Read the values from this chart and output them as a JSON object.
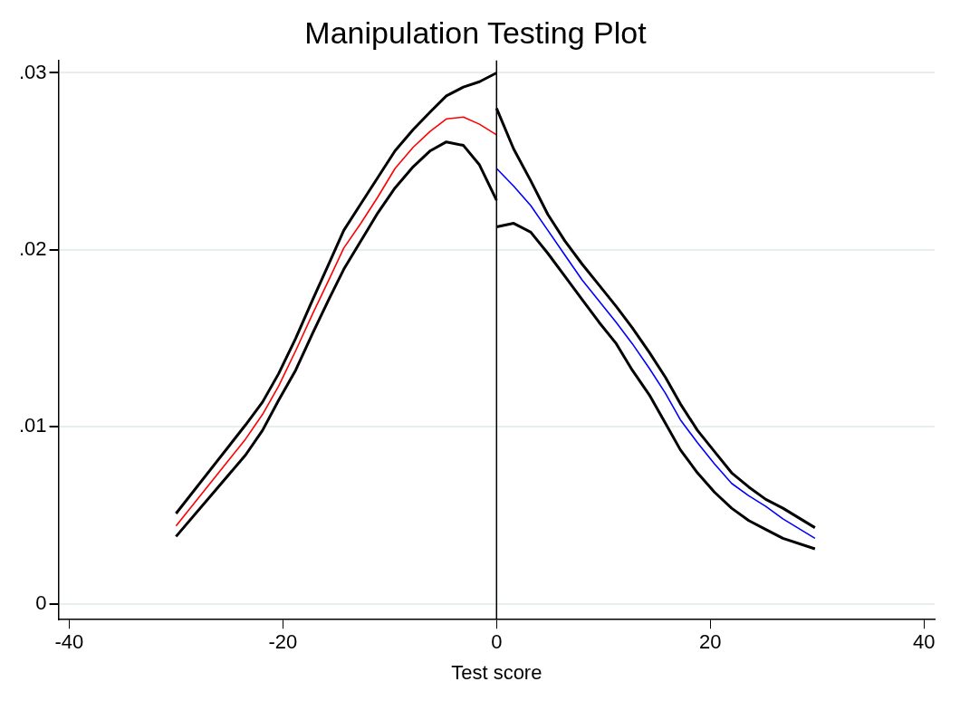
{
  "chart_data": {
    "type": "line",
    "title": "Manipulation Testing Plot",
    "xlabel": "Test score",
    "xlim": [
      -41,
      41
    ],
    "xticks": [
      -40,
      -20,
      0,
      20,
      40
    ],
    "ylim": [
      -0.0009,
      0.0307
    ],
    "yticks": [
      {
        "value": 0,
        "label": "0"
      },
      {
        "value": 0.01,
        "label": ".01"
      },
      {
        "value": 0.02,
        "label": ".02"
      },
      {
        "value": 0.03,
        "label": ".03"
      }
    ],
    "grid": "y",
    "legend": false,
    "marker": "none",
    "line_style": "solid",
    "ref_lines": [
      {
        "axis": "x",
        "value": 0,
        "color": "#000000"
      }
    ],
    "series": [
      {
        "color": "#ff0000",
        "x": [
          -30,
          -23.5,
          -21.9,
          -20.4,
          -18.8,
          -17.2,
          -15.7,
          -14.3,
          -12.7,
          -11.1,
          -9.5,
          -7.8,
          -6.2,
          -4.7,
          -3.1,
          -1.6,
          0
        ],
        "values": [
          0.0044,
          0.0093,
          0.0107,
          0.0123,
          0.0143,
          0.0164,
          0.0183,
          0.0201,
          0.0215,
          0.023,
          0.0246,
          0.0258,
          0.0267,
          0.0274,
          0.0275,
          0.0271,
          0.0265
        ]
      },
      {
        "color": "#000000",
        "x": [
          -30,
          -23.5,
          -21.9,
          -20.4,
          -18.8,
          -17.2,
          -15.7,
          -14.3,
          -12.7,
          -11.1,
          -9.5,
          -7.8,
          -6.2,
          -4.7,
          -3.1,
          -1.6,
          0
        ],
        "values": [
          0.0051,
          0.0101,
          0.0114,
          0.013,
          0.015,
          0.0172,
          0.0192,
          0.0211,
          0.0226,
          0.0241,
          0.0256,
          0.0268,
          0.0278,
          0.0287,
          0.0292,
          0.0295,
          0.03
        ]
      },
      {
        "color": "#000000",
        "x": [
          -30,
          -23.5,
          -21.9,
          -20.4,
          -18.8,
          -17.2,
          -15.7,
          -14.3,
          -12.7,
          -11.1,
          -9.5,
          -7.8,
          -6.2,
          -4.7,
          -3.1,
          -1.6,
          0
        ],
        "values": [
          0.0038,
          0.0084,
          0.0098,
          0.0115,
          0.0132,
          0.0153,
          0.0172,
          0.0189,
          0.0205,
          0.0221,
          0.0235,
          0.0247,
          0.0256,
          0.0261,
          0.0259,
          0.0248,
          0.0228
        ]
      },
      {
        "color": "#0000ff",
        "x": [
          0,
          1.6,
          3.2,
          4.8,
          6.4,
          8,
          9.6,
          11.2,
          12.7,
          14.3,
          15.8,
          17.2,
          18.8,
          20.4,
          22,
          23.6,
          25.2,
          26.8,
          29.8
        ],
        "values": [
          0.0246,
          0.0236,
          0.0225,
          0.0211,
          0.0197,
          0.0183,
          0.0171,
          0.0159,
          0.0147,
          0.0133,
          0.0119,
          0.0104,
          0.0091,
          0.0079,
          0.0068,
          0.0061,
          0.0055,
          0.0048,
          0.0037
        ]
      },
      {
        "color": "#000000",
        "x": [
          0,
          1.6,
          3.2,
          4.8,
          6.4,
          8,
          9.6,
          11.2,
          12.7,
          14.3,
          15.8,
          17.2,
          18.8,
          20.4,
          22,
          23.6,
          25.2,
          26.8,
          29.8
        ],
        "values": [
          0.028,
          0.0257,
          0.0239,
          0.022,
          0.0205,
          0.0192,
          0.018,
          0.0168,
          0.0156,
          0.0142,
          0.0128,
          0.0113,
          0.0098,
          0.0086,
          0.0074,
          0.0066,
          0.0059,
          0.0054,
          0.0043
        ]
      },
      {
        "color": "#000000",
        "x": [
          0,
          1.6,
          3.2,
          4.8,
          6.4,
          8,
          9.6,
          11.2,
          12.7,
          14.3,
          15.8,
          17.2,
          18.8,
          20.4,
          22,
          23.6,
          25.2,
          26.8,
          29.8
        ],
        "values": [
          0.0213,
          0.0215,
          0.021,
          0.0198,
          0.0185,
          0.0172,
          0.0159,
          0.0147,
          0.0132,
          0.0118,
          0.0102,
          0.0087,
          0.0074,
          0.0063,
          0.0054,
          0.0047,
          0.0042,
          0.0037,
          0.0031
        ]
      }
    ]
  }
}
